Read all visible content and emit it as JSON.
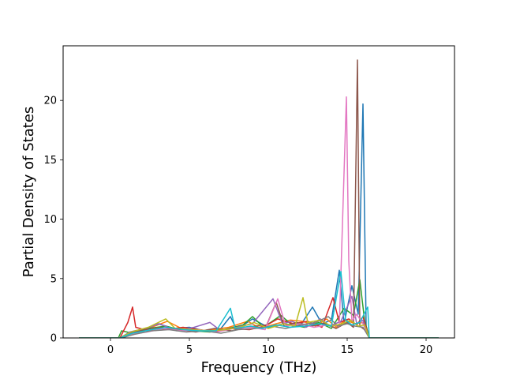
{
  "chart_data": {
    "type": "line",
    "title": "",
    "xlabel": "Frequency (THz)",
    "ylabel": "Partial Density of States",
    "xlim": [
      -3.0,
      21.8
    ],
    "ylim": [
      0,
      24.6
    ],
    "xticks": [
      0,
      5,
      10,
      15,
      20
    ],
    "yticks": [
      0,
      5,
      10,
      15,
      20
    ],
    "grid": false,
    "legend": "none",
    "x_range_sampled": [
      -2.0,
      20.8
    ],
    "colors": [
      "#1f77b4",
      "#ff7f0e",
      "#2ca02c",
      "#d62728",
      "#9467bd",
      "#8c564b",
      "#e377c2",
      "#7f7f7f",
      "#bcbd22",
      "#17becf"
    ],
    "series": [
      {
        "color": "#1f77b4",
        "points": [
          [
            -2.0,
            0
          ],
          [
            0.6,
            0
          ],
          [
            1.1,
            0.4
          ],
          [
            2.0,
            0.6
          ],
          [
            3.0,
            1.2
          ],
          [
            4.0,
            0.8
          ],
          [
            5.0,
            0.9
          ],
          [
            6.0,
            0.6
          ],
          [
            7.0,
            0.8
          ],
          [
            7.6,
            1.8
          ],
          [
            8.0,
            0.7
          ],
          [
            9.0,
            1.6
          ],
          [
            10.0,
            0.9
          ],
          [
            11.0,
            1.2
          ],
          [
            12.0,
            1.0
          ],
          [
            12.8,
            2.6
          ],
          [
            13.4,
            1.2
          ],
          [
            14.0,
            1.5
          ],
          [
            14.5,
            5.7
          ],
          [
            14.8,
            1.2
          ],
          [
            15.3,
            4.4
          ],
          [
            15.7,
            2.0
          ],
          [
            16.0,
            19.7
          ],
          [
            16.2,
            1.0
          ],
          [
            16.4,
            0
          ],
          [
            20.8,
            0
          ]
        ]
      },
      {
        "color": "#ff7f0e",
        "points": [
          [
            -2.0,
            0
          ],
          [
            0.6,
            0
          ],
          [
            1.0,
            0.3
          ],
          [
            2.0,
            0.5
          ],
          [
            2.8,
            1.0
          ],
          [
            3.6,
            1.4
          ],
          [
            4.5,
            0.8
          ],
          [
            5.5,
            0.6
          ],
          [
            6.5,
            0.7
          ],
          [
            7.5,
            0.9
          ],
          [
            8.7,
            1.4
          ],
          [
            9.5,
            0.8
          ],
          [
            10.5,
            1.2
          ],
          [
            11.4,
            1.5
          ],
          [
            12.2,
            1.4
          ],
          [
            13.0,
            1.0
          ],
          [
            13.7,
            1.6
          ],
          [
            14.3,
            0.9
          ],
          [
            14.9,
            1.5
          ],
          [
            15.5,
            1.2
          ],
          [
            16.0,
            1.3
          ],
          [
            16.4,
            0
          ],
          [
            20.8,
            0
          ]
        ]
      },
      {
        "color": "#2ca02c",
        "points": [
          [
            -2.0,
            0
          ],
          [
            0.5,
            0
          ],
          [
            0.7,
            0.6
          ],
          [
            1.4,
            0.4
          ],
          [
            2.4,
            0.8
          ],
          [
            3.5,
            1.0
          ],
          [
            4.1,
            0.8
          ],
          [
            5.2,
            0.6
          ],
          [
            6.3,
            0.5
          ],
          [
            7.2,
            0.7
          ],
          [
            8.4,
            1.1
          ],
          [
            9.0,
            1.8
          ],
          [
            9.7,
            0.9
          ],
          [
            10.8,
            1.9
          ],
          [
            11.5,
            1.1
          ],
          [
            12.3,
            0.9
          ],
          [
            13.2,
            1.3
          ],
          [
            14.0,
            0.8
          ],
          [
            14.8,
            2.5
          ],
          [
            15.4,
            1.9
          ],
          [
            15.8,
            4.9
          ],
          [
            16.1,
            1.5
          ],
          [
            16.4,
            0
          ],
          [
            20.8,
            0
          ]
        ]
      },
      {
        "color": "#d62728",
        "points": [
          [
            -2.0,
            0
          ],
          [
            0.6,
            0
          ],
          [
            1.1,
            1.3
          ],
          [
            1.4,
            2.6
          ],
          [
            1.6,
            0.9
          ],
          [
            2.4,
            0.6
          ],
          [
            3.5,
            0.7
          ],
          [
            4.6,
            0.9
          ],
          [
            5.6,
            0.7
          ],
          [
            6.6,
            0.5
          ],
          [
            7.6,
            0.8
          ],
          [
            8.8,
            0.7
          ],
          [
            9.8,
            1.0
          ],
          [
            10.6,
            1.6
          ],
          [
            11.6,
            1.2
          ],
          [
            12.5,
            1.4
          ],
          [
            13.4,
            0.9
          ],
          [
            14.1,
            3.4
          ],
          [
            14.5,
            1.3
          ],
          [
            15.1,
            1.6
          ],
          [
            15.6,
            1.1
          ],
          [
            16.0,
            1.8
          ],
          [
            16.4,
            0
          ],
          [
            20.8,
            0
          ]
        ]
      },
      {
        "color": "#9467bd",
        "points": [
          [
            -2.0,
            0
          ],
          [
            0.7,
            0
          ],
          [
            1.2,
            0.5
          ],
          [
            2.2,
            0.8
          ],
          [
            3.1,
            1.2
          ],
          [
            4.2,
            0.6
          ],
          [
            5.3,
            0.9
          ],
          [
            6.3,
            1.3
          ],
          [
            7.0,
            0.6
          ],
          [
            8.0,
            0.9
          ],
          [
            9.0,
            1.2
          ],
          [
            10.3,
            3.3
          ],
          [
            10.9,
            1.2
          ],
          [
            11.5,
            1.4
          ],
          [
            12.4,
            0.9
          ],
          [
            13.3,
            1.6
          ],
          [
            13.9,
            1.0
          ],
          [
            14.6,
            1.4
          ],
          [
            15.3,
            3.5
          ],
          [
            15.6,
            1.2
          ],
          [
            16.0,
            1.5
          ],
          [
            16.4,
            0
          ],
          [
            20.8,
            0
          ]
        ]
      },
      {
        "color": "#8c564b",
        "points": [
          [
            -2.0,
            0
          ],
          [
            0.6,
            0
          ],
          [
            1.3,
            0.4
          ],
          [
            2.1,
            0.7
          ],
          [
            3.2,
            0.9
          ],
          [
            4.3,
            0.7
          ],
          [
            5.4,
            0.5
          ],
          [
            6.6,
            0.8
          ],
          [
            7.7,
            0.6
          ],
          [
            8.5,
            0.9
          ],
          [
            9.9,
            1.1
          ],
          [
            10.5,
            3.0
          ],
          [
            11.0,
            1.0
          ],
          [
            11.8,
            1.3
          ],
          [
            12.7,
            1.0
          ],
          [
            13.6,
            1.2
          ],
          [
            14.3,
            0.8
          ],
          [
            15.0,
            1.3
          ],
          [
            15.4,
            0.9
          ],
          [
            15.65,
            23.4
          ],
          [
            15.8,
            1.0
          ],
          [
            16.3,
            0.5
          ],
          [
            16.4,
            0
          ],
          [
            20.8,
            0
          ]
        ]
      },
      {
        "color": "#e377c2",
        "points": [
          [
            -2.0,
            0
          ],
          [
            0.6,
            0
          ],
          [
            1.2,
            0.3
          ],
          [
            2.3,
            0.5
          ],
          [
            3.4,
            0.8
          ],
          [
            4.5,
            0.6
          ],
          [
            5.6,
            0.7
          ],
          [
            6.7,
            0.5
          ],
          [
            7.8,
            0.8
          ],
          [
            8.9,
            0.9
          ],
          [
            9.8,
            0.7
          ],
          [
            10.6,
            3.3
          ],
          [
            11.1,
            1.0
          ],
          [
            12.0,
            1.2
          ],
          [
            12.9,
            0.9
          ],
          [
            13.8,
            1.1
          ],
          [
            14.5,
            1.0
          ],
          [
            14.95,
            20.3
          ],
          [
            15.1,
            6.5
          ],
          [
            15.3,
            1.4
          ],
          [
            15.6,
            2.0
          ],
          [
            16.0,
            1.2
          ],
          [
            16.4,
            0
          ],
          [
            20.8,
            0
          ]
        ]
      },
      {
        "color": "#7f7f7f",
        "points": [
          [
            -2.0,
            0
          ],
          [
            0.7,
            0
          ],
          [
            1.5,
            0.3
          ],
          [
            2.6,
            0.6
          ],
          [
            3.7,
            0.7
          ],
          [
            4.8,
            0.5
          ],
          [
            5.9,
            0.6
          ],
          [
            7.0,
            0.4
          ],
          [
            8.1,
            0.7
          ],
          [
            9.2,
            0.8
          ],
          [
            10.2,
            1.0
          ],
          [
            11.1,
            0.8
          ],
          [
            12.0,
            1.1
          ],
          [
            13.0,
            1.3
          ],
          [
            13.8,
            1.8
          ],
          [
            14.4,
            1.0
          ],
          [
            15.0,
            1.2
          ],
          [
            15.5,
            1.0
          ],
          [
            16.0,
            0.9
          ],
          [
            16.4,
            0
          ],
          [
            20.8,
            0
          ]
        ]
      },
      {
        "color": "#bcbd22",
        "points": [
          [
            -2.0,
            0
          ],
          [
            0.6,
            0
          ],
          [
            1.3,
            0.5
          ],
          [
            2.4,
            0.9
          ],
          [
            3.5,
            1.6
          ],
          [
            4.1,
            0.8
          ],
          [
            5.2,
            0.7
          ],
          [
            6.3,
            0.6
          ],
          [
            7.3,
            0.7
          ],
          [
            8.2,
            0.9
          ],
          [
            9.1,
            1.3
          ],
          [
            10.0,
            0.8
          ],
          [
            11.0,
            1.2
          ],
          [
            11.7,
            1.0
          ],
          [
            12.2,
            3.4
          ],
          [
            12.5,
            1.3
          ],
          [
            13.3,
            1.5
          ],
          [
            14.0,
            1.0
          ],
          [
            14.7,
            1.2
          ],
          [
            15.2,
            1.5
          ],
          [
            15.7,
            1.0
          ],
          [
            16.1,
            1.1
          ],
          [
            16.4,
            0
          ],
          [
            20.8,
            0
          ]
        ]
      },
      {
        "color": "#17becf",
        "points": [
          [
            -2.0,
            0
          ],
          [
            0.6,
            0
          ],
          [
            1.4,
            0.4
          ],
          [
            2.6,
            0.7
          ],
          [
            3.6,
            0.9
          ],
          [
            4.6,
            0.7
          ],
          [
            5.6,
            0.6
          ],
          [
            6.7,
            0.6
          ],
          [
            7.6,
            2.5
          ],
          [
            7.9,
            0.8
          ],
          [
            8.9,
            1.0
          ],
          [
            9.6,
            0.8
          ],
          [
            10.5,
            1.1
          ],
          [
            11.4,
            0.9
          ],
          [
            12.3,
            1.0
          ],
          [
            13.2,
            1.2
          ],
          [
            14.0,
            1.0
          ],
          [
            14.6,
            5.6
          ],
          [
            14.9,
            1.5
          ],
          [
            15.3,
            1.1
          ],
          [
            15.8,
            1.3
          ],
          [
            16.3,
            2.6
          ],
          [
            16.4,
            0
          ],
          [
            20.8,
            0
          ]
        ]
      }
    ]
  }
}
